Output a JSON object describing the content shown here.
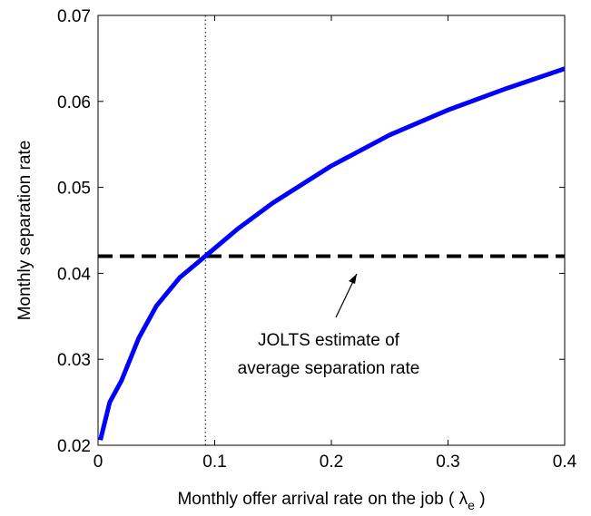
{
  "chart_data": {
    "type": "line",
    "xlabel": {
      "text": "Monthly offer arrival rate on the job (",
      "symbol": "λ",
      "subscript": "e",
      "close": ")"
    },
    "ylabel": "Monthly separation rate",
    "x": [
      0.002,
      0.01,
      0.02,
      0.035,
      0.05,
      0.07,
      0.092,
      0.12,
      0.15,
      0.2,
      0.25,
      0.3,
      0.35,
      0.4
    ],
    "series": [
      {
        "name": "Monthly separation rate",
        "color": "#0000ff",
        "values": [
          0.0206,
          0.025,
          0.0275,
          0.0325,
          0.0362,
          0.0395,
          0.042,
          0.0452,
          0.0482,
          0.0525,
          0.0561,
          0.059,
          0.0615,
          0.0638
        ]
      }
    ],
    "hline": {
      "value": 0.042,
      "label": [
        "JOLTS estimate of",
        "average separation rate"
      ]
    },
    "vline": 0.092,
    "xlim": [
      0,
      0.4
    ],
    "xticks": [
      0,
      0.1,
      0.2,
      0.3,
      0.4
    ],
    "ylim": [
      0.02,
      0.07
    ],
    "yticks": [
      0.02,
      0.03,
      0.04,
      0.05,
      0.06,
      0.07
    ]
  }
}
